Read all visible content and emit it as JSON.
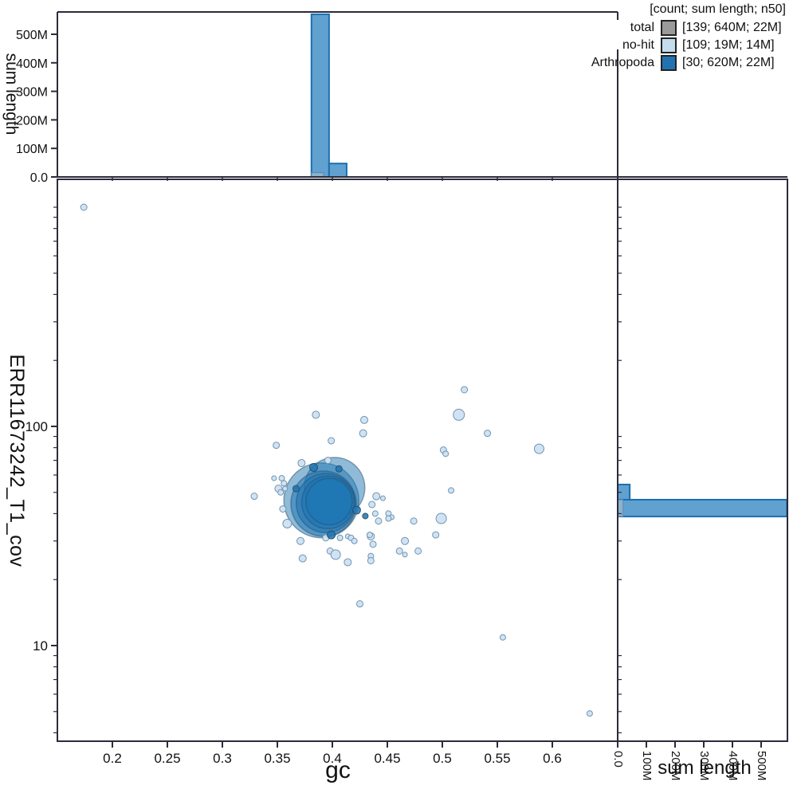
{
  "legend": {
    "title": "[count; sum length; n50]",
    "items": [
      {
        "label": "total",
        "color": "#9a9a9a",
        "value": "[139; 640M; 22M]"
      },
      {
        "label": "no-hit",
        "color": "#c3dcee",
        "value": "[109; 19M; 14M]"
      },
      {
        "label": "Arthropoda",
        "color": "#2272b2",
        "value": "[30; 620M; 22M]"
      }
    ]
  },
  "colors": {
    "arthropoda": "#1f77b4",
    "arthropoda_stroke": "#2a4f6e",
    "nohit_fill": "#cfe2f2",
    "nohit_stroke": "#6f94b2",
    "bar_fill": "#4b94c9",
    "bar_stroke": "#1c6fb0",
    "nohit_bar_fill": "#8fb4cd",
    "nohit_bar_stroke": "#5d87a6",
    "frame": "#2b2b3b",
    "text": "#111111"
  },
  "chart_data": {
    "type": "scatter",
    "subtype": "blobplot with marginal histograms",
    "axes": {
      "main": {
        "xlabel": "gc",
        "ylabel": "ERR11673242_T1_cov",
        "x_ticks": [
          0.2,
          0.25,
          0.3,
          0.35,
          0.4,
          0.45,
          0.5,
          0.55,
          0.6
        ],
        "x_range": [
          0.15,
          0.66
        ],
        "y_scale": "log",
        "y_major_ticks": [
          10,
          100
        ],
        "y_minor_ticks": [
          4,
          5,
          6,
          7,
          8,
          9,
          20,
          30,
          40,
          50,
          60,
          70,
          80,
          90,
          200,
          300,
          400,
          500,
          600,
          700,
          800,
          900,
          1000
        ],
        "y_range": [
          3.7,
          1340
        ]
      },
      "top": {
        "ylabel": "sum length",
        "y_ticks": [
          {
            "v": 0,
            "label": "0.0"
          },
          {
            "v": 100,
            "label": "100M"
          },
          {
            "v": 200,
            "label": "200M"
          },
          {
            "v": 300,
            "label": "300M"
          },
          {
            "v": 400,
            "label": "400M"
          },
          {
            "v": 500,
            "label": "500M"
          }
        ],
        "units": "M"
      },
      "right": {
        "xlabel": "sum length",
        "x_ticks": [
          {
            "v": 0,
            "label": "0.0"
          },
          {
            "v": 100,
            "label": "100M"
          },
          {
            "v": 200,
            "label": "200M"
          },
          {
            "v": 300,
            "label": "300M"
          },
          {
            "v": 400,
            "label": "400M"
          },
          {
            "v": 500,
            "label": "500M"
          }
        ],
        "units": "M"
      }
    },
    "top_histogram": {
      "arthropoda": [
        {
          "gc0": 0.381,
          "gc1": 0.397,
          "sum_M": 570
        },
        {
          "gc0": 0.397,
          "gc1": 0.413,
          "sum_M": 47
        }
      ],
      "nohit": [
        {
          "gc0": 0.381,
          "gc1": 0.392,
          "sum_M": 15
        }
      ]
    },
    "right_histogram": {
      "arthropoda": [
        {
          "cov0": 38.8,
          "cov1": 46.3,
          "sum_M": 590
        },
        {
          "cov0": 46.3,
          "cov1": 54.3,
          "sum_M": 42
        }
      ],
      "nohit": [
        {
          "cov0": 38.8,
          "cov1": 46.3,
          "sum_M": 19
        }
      ]
    },
    "blobs_arthropoda_major": [
      [
        0.39,
        46.0,
        47,
        0.5
      ],
      [
        0.402,
        52.5,
        38,
        0.5
      ],
      [
        0.392,
        44.4,
        41,
        0.55
      ],
      [
        0.394,
        44.7,
        37,
        0.6
      ],
      [
        0.396,
        45.0,
        33,
        0.65
      ],
      [
        0.397,
        45.4,
        29,
        0.75
      ]
    ],
    "points_arthropoda": [
      [
        0.367,
        52.0,
        4.0
      ],
      [
        0.383,
        65.0,
        5.0
      ],
      [
        0.399,
        32.0,
        5.0
      ],
      [
        0.422,
        41.5,
        5.0
      ],
      [
        0.406,
        64.0,
        4.0
      ],
      [
        0.43,
        39.0,
        3.5
      ]
    ],
    "points_nohit": [
      [
        0.174,
        1000,
        4.0
      ],
      [
        0.52,
        147,
        4.0
      ],
      [
        0.385,
        113,
        4.5
      ],
      [
        0.515,
        113,
        7.0
      ],
      [
        0.429,
        107,
        4.5
      ],
      [
        0.428,
        93,
        4.5
      ],
      [
        0.541,
        93,
        4.0
      ],
      [
        0.399,
        86,
        4.0
      ],
      [
        0.349,
        82,
        4.0
      ],
      [
        0.501,
        78,
        4.0
      ],
      [
        0.503,
        75,
        3.5
      ],
      [
        0.588,
        79,
        6.0
      ],
      [
        0.396,
        70,
        4.0
      ],
      [
        0.372,
        68,
        4.5
      ],
      [
        0.347,
        58,
        3.0
      ],
      [
        0.354,
        58,
        3.5
      ],
      [
        0.351,
        52,
        4.5
      ],
      [
        0.356,
        55,
        3.5
      ],
      [
        0.357,
        52,
        3.0
      ],
      [
        0.353,
        50,
        3.5
      ],
      [
        0.329,
        48,
        4.0
      ],
      [
        0.355,
        42,
        4.0
      ],
      [
        0.359,
        36,
        5.5
      ],
      [
        0.508,
        51,
        3.5
      ],
      [
        0.44,
        48,
        4.5
      ],
      [
        0.446,
        47,
        3.0
      ],
      [
        0.436,
        44,
        4.0
      ],
      [
        0.439,
        40,
        3.5
      ],
      [
        0.451,
        40,
        3.5
      ],
      [
        0.454,
        38.5,
        3.0
      ],
      [
        0.442,
        37,
        4.0
      ],
      [
        0.474,
        37,
        4.0
      ],
      [
        0.499,
        38,
        6.5
      ],
      [
        0.494,
        32,
        4.0
      ],
      [
        0.435,
        31.5,
        4.5
      ],
      [
        0.466,
        30,
        4.5
      ],
      [
        0.371,
        30,
        4.5
      ],
      [
        0.394,
        31,
        4.0
      ],
      [
        0.407,
        31,
        3.5
      ],
      [
        0.414,
        31.5,
        3.0
      ],
      [
        0.417,
        31,
        3.5
      ],
      [
        0.42,
        30,
        3.5
      ],
      [
        0.434,
        32,
        3.5
      ],
      [
        0.437,
        29,
        4.0
      ],
      [
        0.451,
        38,
        3.5
      ],
      [
        0.461,
        27,
        4.0
      ],
      [
        0.466,
        26,
        3.0
      ],
      [
        0.478,
        27,
        4.0
      ],
      [
        0.398,
        27,
        4.0
      ],
      [
        0.403,
        26,
        6.0
      ],
      [
        0.373,
        25,
        4.5
      ],
      [
        0.414,
        24,
        4.5
      ],
      [
        0.435,
        25.6,
        3.5
      ],
      [
        0.435,
        24.4,
        4.0
      ],
      [
        0.425,
        15.5,
        4.0
      ],
      [
        0.555,
        10.9,
        3.5
      ],
      [
        0.634,
        4.9,
        3.5
      ]
    ]
  }
}
